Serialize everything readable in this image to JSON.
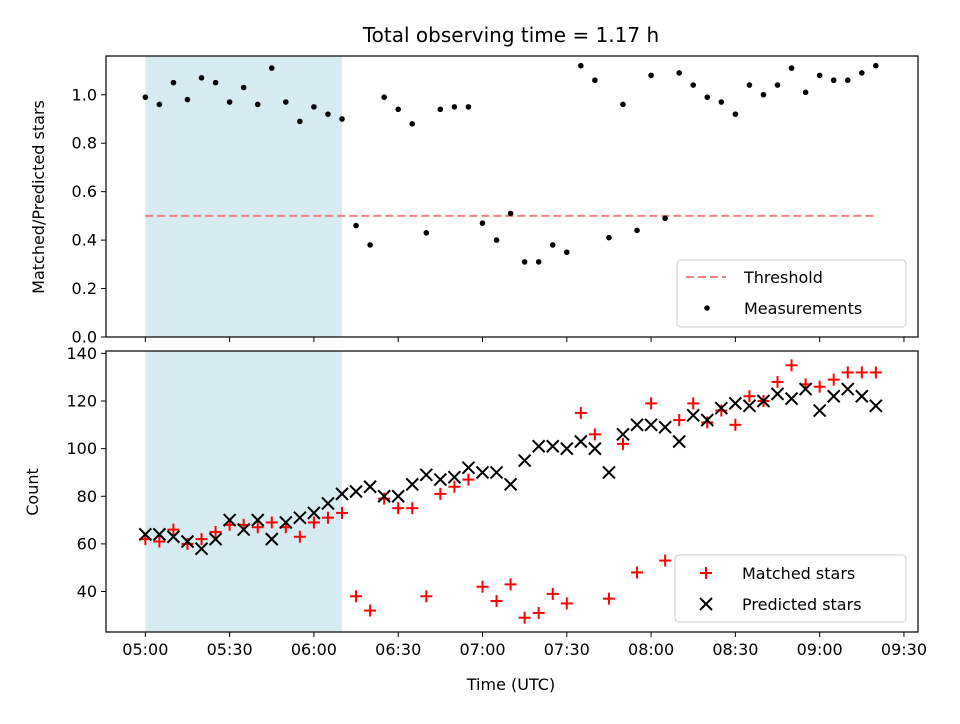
{
  "figure": {
    "title": "Total observing time = 1.17 h",
    "xlabel": "Time (UTC)"
  },
  "colors": {
    "shade": "#add8e6",
    "threshold": "#f08080",
    "matched": "#ff0000",
    "predicted": "#000000",
    "measurement": "#000000"
  },
  "chart_data": [
    {
      "type": "scatter",
      "panel": "top",
      "ylabel": "Matched/Predicted stars",
      "xlim": [
        "04:46",
        "09:35"
      ],
      "ylim": [
        0,
        1.16
      ],
      "xticks": [
        "05:00",
        "05:30",
        "06:00",
        "06:30",
        "07:00",
        "07:30",
        "08:00",
        "08:30",
        "09:00",
        "09:30"
      ],
      "yticks": [
        "0.0",
        "0.2",
        "0.4",
        "0.6",
        "0.8",
        "1.0"
      ],
      "grid": false,
      "legend_position": "lower right",
      "shaded_region": [
        "05:00",
        "06:10"
      ],
      "threshold": {
        "name": "Threshold",
        "value": 0.5,
        "x_range": [
          "05:00",
          "09:20"
        ],
        "style": "dashed"
      },
      "series": [
        {
          "name": "Measurements",
          "x": [
            "05:00",
            "05:05",
            "05:10",
            "05:15",
            "05:20",
            "05:25",
            "05:30",
            "05:35",
            "05:40",
            "05:45",
            "05:50",
            "05:55",
            "06:00",
            "06:05",
            "06:10",
            "06:15",
            "06:20",
            "06:25",
            "06:30",
            "06:35",
            "06:40",
            "06:45",
            "06:50",
            "06:55",
            "07:00",
            "07:05",
            "07:10",
            "07:15",
            "07:20",
            "07:25",
            "07:30",
            "07:35",
            "07:40",
            "07:45",
            "07:50",
            "07:55",
            "08:00",
            "08:05",
            "08:10",
            "08:15",
            "08:20",
            "08:25",
            "08:30",
            "08:35",
            "08:40",
            "08:45",
            "08:50",
            "08:55",
            "09:00",
            "09:05",
            "09:10",
            "09:15",
            "09:20"
          ],
          "y": [
            0.99,
            0.96,
            1.05,
            0.98,
            1.07,
            1.05,
            0.97,
            1.03,
            0.96,
            1.11,
            0.97,
            0.89,
            0.95,
            0.92,
            0.9,
            0.46,
            0.38,
            0.99,
            0.94,
            0.88,
            0.43,
            0.94,
            0.95,
            0.95,
            0.47,
            0.4,
            0.51,
            0.31,
            0.31,
            0.38,
            0.35,
            1.12,
            1.06,
            0.41,
            0.96,
            0.44,
            1.08,
            0.49,
            1.09,
            1.04,
            0.99,
            0.97,
            0.92,
            1.04,
            1.0,
            1.04,
            1.11,
            1.01,
            1.08,
            1.06,
            1.06,
            1.09,
            1.12
          ]
        }
      ]
    },
    {
      "type": "scatter",
      "panel": "bottom",
      "ylabel": "Count",
      "xlim": [
        "04:46",
        "09:35"
      ],
      "ylim": [
        23,
        141
      ],
      "xticks": [
        "05:00",
        "05:30",
        "06:00",
        "06:30",
        "07:00",
        "07:30",
        "08:00",
        "08:30",
        "09:00",
        "09:30"
      ],
      "yticks": [
        "40",
        "60",
        "80",
        "100",
        "120",
        "140"
      ],
      "grid": false,
      "legend_position": "lower right",
      "shaded_region": [
        "05:00",
        "06:10"
      ],
      "series": [
        {
          "name": "Matched stars",
          "marker": "+",
          "x": [
            "05:00",
            "05:05",
            "05:10",
            "05:15",
            "05:20",
            "05:25",
            "05:30",
            "05:35",
            "05:40",
            "05:45",
            "05:50",
            "05:55",
            "06:00",
            "06:05",
            "06:10",
            "06:15",
            "06:20",
            "06:25",
            "06:30",
            "06:35",
            "06:40",
            "06:45",
            "06:50",
            "06:55",
            "07:00",
            "07:05",
            "07:10",
            "07:15",
            "07:20",
            "07:25",
            "07:30",
            "07:35",
            "07:40",
            "07:45",
            "07:50",
            "07:55",
            "08:00",
            "08:05",
            "08:10",
            "08:15",
            "08:20",
            "08:25",
            "08:30",
            "08:35",
            "08:40",
            "08:45",
            "08:50",
            "08:55",
            "09:00",
            "09:05",
            "09:10",
            "09:15",
            "09:20"
          ],
          "y": [
            62,
            61,
            66,
            60,
            62,
            65,
            68,
            68,
            67,
            69,
            67,
            63,
            69,
            71,
            73,
            38,
            32,
            79,
            75,
            75,
            38,
            81,
            84,
            87,
            42,
            36,
            43,
            29,
            31,
            39,
            35,
            115,
            106,
            37,
            102,
            48,
            119,
            53,
            112,
            119,
            111,
            116,
            110,
            122,
            120,
            128,
            135,
            127,
            126,
            129,
            132,
            132,
            132
          ]
        },
        {
          "name": "Predicted stars",
          "marker": "x",
          "x": [
            "05:00",
            "05:05",
            "05:10",
            "05:15",
            "05:20",
            "05:25",
            "05:30",
            "05:35",
            "05:40",
            "05:45",
            "05:50",
            "05:55",
            "06:00",
            "06:05",
            "06:10",
            "06:15",
            "06:20",
            "06:25",
            "06:30",
            "06:35",
            "06:40",
            "06:45",
            "06:50",
            "06:55",
            "07:00",
            "07:05",
            "07:10",
            "07:15",
            "07:20",
            "07:25",
            "07:30",
            "07:35",
            "07:40",
            "07:45",
            "07:50",
            "07:55",
            "08:00",
            "08:05",
            "08:10",
            "08:15",
            "08:20",
            "08:25",
            "08:30",
            "08:35",
            "08:40",
            "08:45",
            "08:50",
            "08:55",
            "09:00",
            "09:05",
            "09:10",
            "09:15",
            "09:20"
          ],
          "y": [
            64,
            64,
            63,
            61,
            58,
            62,
            70,
            66,
            70,
            62,
            69,
            71,
            73,
            77,
            81,
            82,
            84,
            80,
            80,
            85,
            89,
            87,
            88,
            92,
            90,
            90,
            85,
            95,
            101,
            101,
            100,
            103,
            100,
            90,
            106,
            110,
            110,
            109,
            103,
            114,
            112,
            117,
            119,
            118,
            120,
            123,
            121,
            125,
            116,
            122,
            125,
            122,
            118
          ]
        }
      ]
    }
  ],
  "legends": {
    "top": {
      "threshold_label": "Threshold",
      "measurements_label": "Measurements"
    },
    "bottom": {
      "matched_label": "Matched stars",
      "predicted_label": "Predicted stars"
    }
  }
}
